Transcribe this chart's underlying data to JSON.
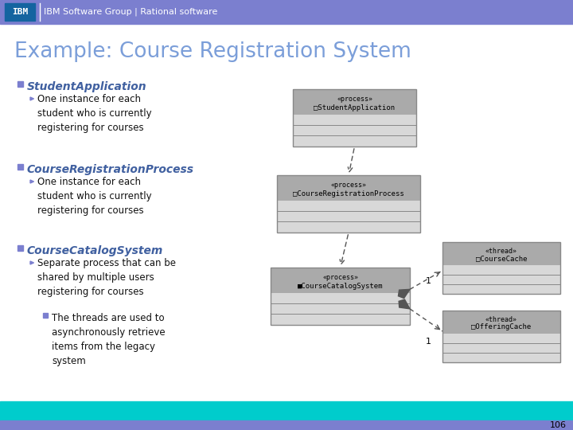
{
  "header_color": "#7b7fcf",
  "header_text": "IBM Software Group | Rational software",
  "footer_color": "#00cccc",
  "footer_bar_color": "#7b7fcf",
  "footer_page_num": "106",
  "bg_color": "#ffffff",
  "title_text": "Example: Course Registration System",
  "title_color": "#7b9ed9",
  "bullet1_text": "StudentApplication",
  "bullet1_desc": "One instance for each\nstudent who is currently\nregistering for courses",
  "bullet2_text": "CourseRegistrationProcess",
  "bullet2_desc": "One instance for each\nstudent who is currently\nregistering for courses",
  "bullet3_text": "CourseCatalogSystem",
  "bullet3_desc1": "Separate process that can be\nshared by multiple users\nregistering for courses",
  "bullet3_desc2": "The threads are used to\nasynchronously retrieve\nitems from the legacy\nsystem",
  "box_border": "#888888",
  "box_top_color": "#aaaaaa",
  "box_bot_color": "#d8d8d8",
  "italic_color": "#4060a0",
  "bullet_sq_color": "#7b7fcf",
  "arrow_color": "#555555",
  "text_color": "#111111"
}
